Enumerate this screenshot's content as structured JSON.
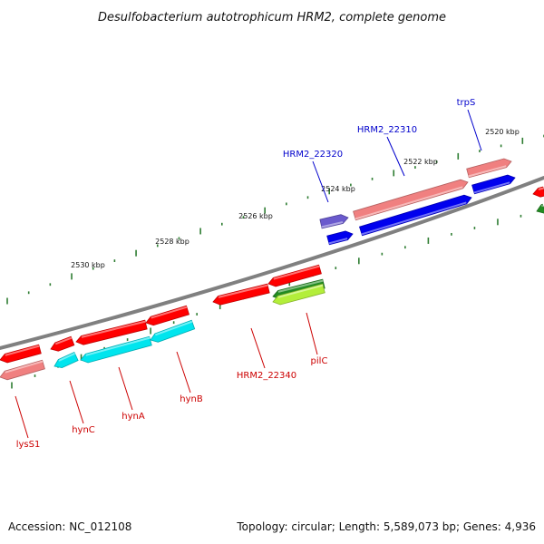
{
  "title": "Desulfobacterium autotrophicum HRM2, complete genome",
  "footer": {
    "accession": "Accession: NC_012108",
    "topology": "Topology: circular; Length: 5,589,073 bp; Genes: 4,936"
  },
  "colors": {
    "backbone": "#808080",
    "tick": "#2e7d32",
    "gene_red": "#ff0000",
    "gene_pink": "#f08080",
    "gene_cyan": "#00e5ee",
    "gene_blue": "#0000ee",
    "gene_violet": "#6a5acd",
    "gene_green": "#228b22",
    "gene_yellowgreen": "#b3ee3a",
    "label_blue": "#0000cc",
    "label_red": "#cc0000"
  },
  "kbp_labels": [
    "2520 kbp",
    "2522 kbp",
    "2524 kbp",
    "2526 kbp",
    "2528 kbp",
    "2530 kbp"
  ],
  "forward_labels": [
    "trpS",
    "HRM2_22310",
    "HRM2_22320"
  ],
  "reverse_labels": [
    "pilC",
    "HRM2_22340",
    "hynB",
    "hynA",
    "hynC",
    "lysS1"
  ]
}
